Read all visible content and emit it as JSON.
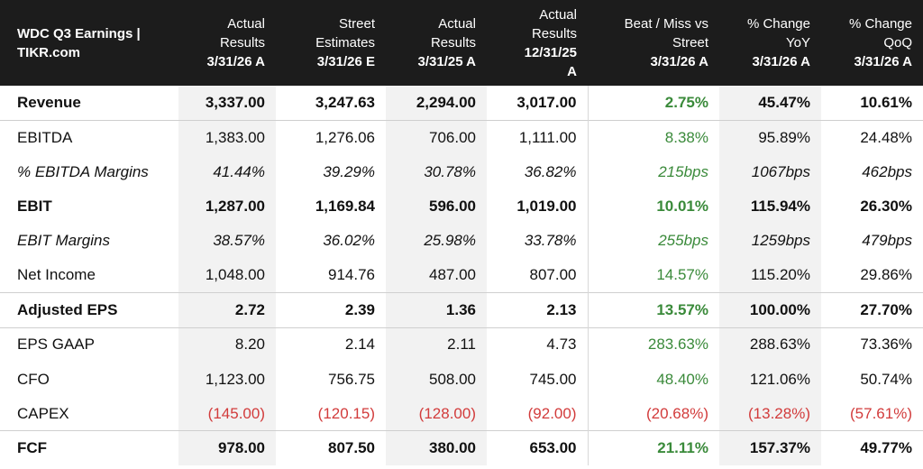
{
  "table": {
    "title_line1": "WDC Q3 Earnings |",
    "title_line2": "TIKR.com",
    "headers": [
      {
        "line1": "Actual",
        "line2": "Results",
        "date": "3/31/26 A"
      },
      {
        "line1": "Street",
        "line2": "Estimates",
        "date": "3/31/26 E"
      },
      {
        "line1": "Actual",
        "line2": "Results",
        "date": "3/31/25 A"
      },
      {
        "line1": "Actual",
        "line2": "Results",
        "date": "12/31/25",
        "date2": "A"
      },
      {
        "line1": "Beat / Miss vs",
        "line2": "Street",
        "date": "3/31/26 A"
      },
      {
        "line1": "% Change",
        "line2": "YoY",
        "date": "3/31/26 A"
      },
      {
        "line1": "% Change",
        "line2": "QoQ",
        "date": "3/31/26 A"
      }
    ],
    "rows": [
      {
        "label": "Revenue",
        "values": [
          "3,337.00",
          "3,247.63",
          "2,294.00",
          "3,017.00",
          "2.75%",
          "45.47%",
          "10.61%"
        ]
      },
      {
        "label": "EBITDA",
        "values": [
          "1,383.00",
          "1,276.06",
          "706.00",
          "1,111.00",
          "8.38%",
          "95.89%",
          "24.48%"
        ]
      },
      {
        "label": "% EBITDA Margins",
        "values": [
          "41.44%",
          "39.29%",
          "30.78%",
          "36.82%",
          "215bps",
          "1067bps",
          "462bps"
        ]
      },
      {
        "label": "EBIT",
        "values": [
          "1,287.00",
          "1,169.84",
          "596.00",
          "1,019.00",
          "10.01%",
          "115.94%",
          "26.30%"
        ]
      },
      {
        "label": "EBIT Margins",
        "values": [
          "38.57%",
          "36.02%",
          "25.98%",
          "33.78%",
          "255bps",
          "1259bps",
          "479bps"
        ]
      },
      {
        "label": "Net Income",
        "values": [
          "1,048.00",
          "914.76",
          "487.00",
          "807.00",
          "14.57%",
          "115.20%",
          "29.86%"
        ]
      },
      {
        "label": "Adjusted EPS",
        "values": [
          "2.72",
          "2.39",
          "1.36",
          "2.13",
          "13.57%",
          "100.00%",
          "27.70%"
        ]
      },
      {
        "label": "EPS GAAP",
        "values": [
          "8.20",
          "2.14",
          "2.11",
          "4.73",
          "283.63%",
          "288.63%",
          "73.36%"
        ]
      },
      {
        "label": "CFO",
        "values": [
          "1,123.00",
          "756.75",
          "508.00",
          "745.00",
          "48.40%",
          "121.06%",
          "50.74%"
        ]
      },
      {
        "label": "CAPEX",
        "values": [
          "(145.00)",
          "(120.15)",
          "(128.00)",
          "(92.00)",
          "(20.68%)",
          "(13.28%)",
          "(57.61%)"
        ]
      },
      {
        "label": "FCF",
        "values": [
          "978.00",
          "807.50",
          "380.00",
          "653.00",
          "21.11%",
          "157.37%",
          "49.77%"
        ]
      }
    ]
  },
  "colors": {
    "header_bg": "#1c1c1c",
    "shade": "#f2f2f2",
    "positive": "#3a8a3a",
    "negative": "#d23b3b"
  }
}
